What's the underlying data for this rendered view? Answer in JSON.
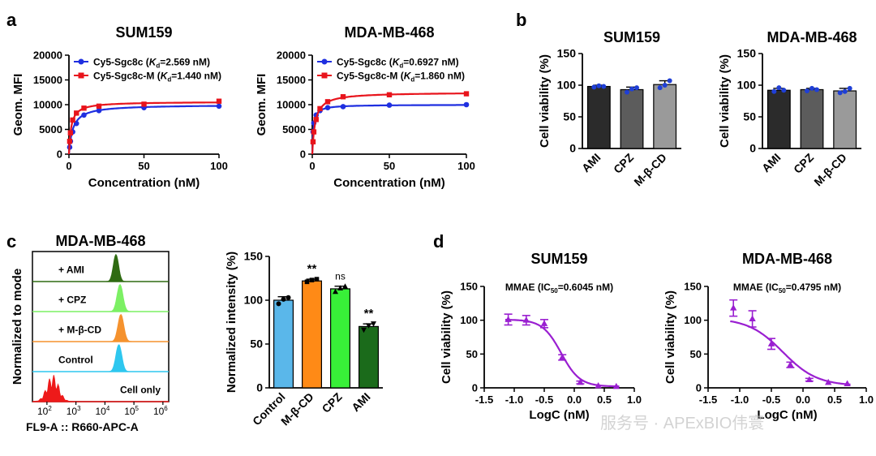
{
  "panels": {
    "a": "a",
    "b": "b",
    "c": "c",
    "d": "d"
  },
  "watermark": "服务号 · APExBIO伟寰",
  "chart_data": [
    {
      "id": "a1",
      "type": "line",
      "title": "SUM159",
      "xlabel": "Concentration (nM)",
      "ylabel": "Geom. MFI",
      "xlim": [
        0,
        100
      ],
      "ylim": [
        0,
        20000
      ],
      "xticks": [
        0,
        50,
        100
      ],
      "yticks": [
        0,
        5000,
        10000,
        15000,
        20000
      ],
      "series": [
        {
          "name": "Cy5-Sgc8c",
          "kd_value": "2.569 nM",
          "color": "#1f2fe0",
          "marker": "circle",
          "x": [
            0.5,
            1,
            2.5,
            5,
            10,
            20,
            50,
            100
          ],
          "y": [
            1400,
            2600,
            4500,
            6200,
            7900,
            8800,
            9400,
            9700
          ],
          "fit": {
            "bmax": 10000,
            "kd": 2.569
          }
        },
        {
          "name": "Cy5-Sgc8c-M",
          "kd_value": "1.440 nM",
          "color": "#e8141c",
          "marker": "square",
          "x": [
            0.5,
            1,
            2.5,
            5,
            10,
            20,
            50,
            100
          ],
          "y": [
            2600,
            4300,
            6900,
            8300,
            9300,
            9700,
            10100,
            10700
          ],
          "fit": {
            "bmax": 10600,
            "kd": 1.44
          }
        }
      ]
    },
    {
      "id": "a2",
      "type": "line",
      "title": "MDA-MB-468",
      "xlabel": "Concentration (nM)",
      "ylabel": "Geom. MFI",
      "xlim": [
        0,
        100
      ],
      "ylim": [
        0,
        20000
      ],
      "xticks": [
        0,
        50,
        100
      ],
      "yticks": [
        0,
        5000,
        10000,
        15000,
        20000
      ],
      "series": [
        {
          "name": "Cy5-Sgc8c",
          "kd_value": "0.6927 nM",
          "color": "#1f2fe0",
          "marker": "circle",
          "x": [
            0.5,
            1,
            2.5,
            5,
            10,
            20,
            50,
            100
          ],
          "y": [
            4500,
            6300,
            7900,
            8800,
            9400,
            9600,
            9900,
            10000
          ],
          "fit": {
            "bmax": 10000,
            "kd": 0.6927
          }
        },
        {
          "name": "Cy5-Sgc8c-M",
          "kd_value": "1.860 nM",
          "color": "#e8141c",
          "marker": "square",
          "x": [
            0.5,
            1,
            2.5,
            5,
            10,
            20,
            50,
            100
          ],
          "y": [
            2500,
            4500,
            7000,
            9200,
            10600,
            11600,
            12000,
            12200
          ],
          "fit": {
            "bmax": 12500,
            "kd": 1.86
          }
        }
      ]
    },
    {
      "id": "b1",
      "type": "bar",
      "title": "SUM159",
      "ylabel": "Cell viability (%)",
      "ylim": [
        0,
        150
      ],
      "yticks": [
        0,
        50,
        100,
        150
      ],
      "categories": [
        "AMI",
        "CPZ",
        "M-β-CD"
      ],
      "values": [
        98,
        93,
        101
      ],
      "errors": [
        2,
        4,
        6
      ],
      "colors": [
        "#2b2b2b",
        "#5c5c5c",
        "#9a9a9a"
      ],
      "points": [
        [
          97,
          99,
          98
        ],
        [
          89,
          94,
          96
        ],
        [
          96,
          100,
          107
        ]
      ]
    },
    {
      "id": "b2",
      "type": "bar",
      "title": "MDA-MB-468",
      "ylabel": "Cell viability (%)",
      "ylim": [
        0,
        150
      ],
      "yticks": [
        0,
        50,
        100,
        150
      ],
      "categories": [
        "AMI",
        "CPZ",
        "M-β-CD"
      ],
      "values": [
        92,
        93,
        91
      ],
      "errors": [
        3,
        2,
        4
      ],
      "colors": [
        "#2b2b2b",
        "#5c5c5c",
        "#9a9a9a"
      ],
      "points": [
        [
          90,
          96,
          92
        ],
        [
          91,
          95,
          93
        ],
        [
          88,
          90,
          95
        ]
      ]
    },
    {
      "id": "c1",
      "type": "area",
      "title": "MDA-MB-468",
      "xlabel": "FL9-A :: R660-APC-A",
      "ylabel": "Normalized to mode",
      "xticks": [
        "10^2",
        "10^3",
        "10^4",
        "10^5",
        "10^6"
      ],
      "tracks": [
        {
          "label": "+ AMI",
          "color": "#2f6b12",
          "peak": 4.38,
          "sigma": 0.09
        },
        {
          "label": "+ CPZ",
          "color": "#7cf064",
          "peak": 4.52,
          "sigma": 0.1
        },
        {
          "label": "+ M-β-CD",
          "color": "#f5922e",
          "peak": 4.55,
          "sigma": 0.1
        },
        {
          "label": "Control",
          "color": "#2ec7ef",
          "peak": 4.48,
          "sigma": 0.1
        },
        {
          "label": "Cell only",
          "color": "#ee1a1a",
          "peak": 2.2,
          "sigma": 0.2
        }
      ]
    },
    {
      "id": "c2",
      "type": "bar",
      "ylabel": "Normalized intensity (%)",
      "ylim": [
        0,
        150
      ],
      "yticks": [
        0,
        50,
        100,
        150
      ],
      "categories": [
        "Control",
        "M-β-CD",
        "CPZ",
        "AMI"
      ],
      "values": [
        100,
        122,
        113,
        70
      ],
      "errors": [
        4,
        2,
        3,
        3
      ],
      "colors": [
        "#5ab7ea",
        "#ff8a16",
        "#38f038",
        "#1b6b1b"
      ],
      "points": [
        [
          96,
          101,
          103
        ],
        [
          121,
          123,
          124
        ],
        [
          110,
          114,
          116
        ],
        [
          66,
          71,
          73
        ]
      ],
      "significance": [
        "",
        "**",
        "ns",
        "**"
      ]
    },
    {
      "id": "d1",
      "type": "line",
      "title": "SUM159",
      "annotation": "MMAE (IC50=0.6045 nM)",
      "xlabel": "LogC (nM)",
      "ylabel": "Cell viability (%)",
      "xlim": [
        -1.5,
        1.0
      ],
      "ylim": [
        0,
        150
      ],
      "xticks": [
        -1.5,
        -1.0,
        -0.5,
        0.0,
        0.5,
        1.0
      ],
      "yticks": [
        0,
        50,
        100,
        150
      ],
      "color": "#9a1fd1",
      "x": [
        -1.1,
        -0.8,
        -0.5,
        -0.2,
        0.1,
        0.4,
        0.7
      ],
      "y": [
        101,
        100,
        95,
        45,
        8,
        3,
        2
      ],
      "err": [
        8,
        7,
        6,
        4,
        2,
        1,
        1
      ],
      "fit": {
        "top": 101,
        "bottom": 2,
        "logic50": -0.2187,
        "hill": 2.8
      }
    },
    {
      "id": "d2",
      "type": "line",
      "title": "MDA-MB-468",
      "annotation": "MMAE (IC50=0.4795 nM)",
      "xlabel": "LogC (nM)",
      "ylabel": "Cell viability (%)",
      "xlim": [
        -1.5,
        1.0
      ],
      "ylim": [
        0,
        150
      ],
      "xticks": [
        -1.5,
        -1.0,
        -0.5,
        0.0,
        0.5,
        1.0
      ],
      "yticks": [
        0,
        50,
        100,
        150
      ],
      "color": "#9a1fd1",
      "x": [
        -1.1,
        -0.8,
        -0.5,
        -0.2,
        0.1,
        0.4,
        0.7
      ],
      "y": [
        118,
        102,
        65,
        34,
        12,
        8,
        6
      ],
      "err": [
        12,
        12,
        8,
        4,
        2,
        1,
        1
      ],
      "fit": {
        "top": 103,
        "bottom": 3,
        "logic50": -0.3192,
        "hill": 1.6
      }
    }
  ]
}
